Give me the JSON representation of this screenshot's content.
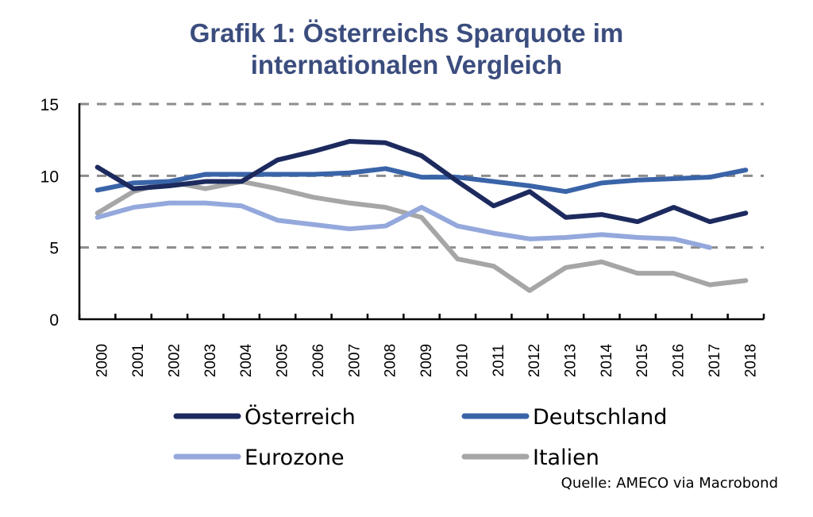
{
  "chart_data": {
    "type": "line",
    "title": "Grafik 1: Österreichs Sparquote im internationalen Vergleich",
    "title_lines": [
      "Grafik 1: Österreichs Sparquote im",
      "internationalen Vergleich"
    ],
    "xlabel": "",
    "ylabel": "",
    "ylim": [
      0,
      15
    ],
    "yticks": [
      "0",
      "5",
      "10",
      "15"
    ],
    "grid": "horizontal dashed at 5, 10, 15",
    "legend_position": "bottom",
    "source": "Quelle: AMECO via Macrobond",
    "categories": [
      "2000",
      "2001",
      "2002",
      "2003",
      "2004",
      "2005",
      "2006",
      "2007",
      "2008",
      "2009",
      "2010",
      "2011",
      "2012",
      "2013",
      "2014",
      "2015",
      "2016",
      "2017",
      "2018"
    ],
    "series": [
      {
        "name": "Österreich",
        "color": "#1c2a5e",
        "values": [
          10.6,
          9.1,
          9.3,
          9.6,
          9.6,
          11.1,
          11.7,
          12.4,
          12.3,
          11.4,
          9.6,
          7.9,
          8.9,
          7.1,
          7.3,
          6.8,
          7.8,
          6.8,
          7.4
        ]
      },
      {
        "name": "Deutschland",
        "color": "#3a64a8",
        "values": [
          9.0,
          9.5,
          9.6,
          10.1,
          10.1,
          10.1,
          10.1,
          10.2,
          10.5,
          9.9,
          9.9,
          9.6,
          9.3,
          8.9,
          9.5,
          9.7,
          9.8,
          9.9,
          10.4
        ]
      },
      {
        "name": "Eurozone",
        "color": "#94a8dc",
        "values": [
          7.1,
          7.8,
          8.1,
          8.1,
          7.9,
          6.9,
          6.6,
          6.3,
          6.5,
          7.8,
          6.5,
          6.0,
          5.6,
          5.7,
          5.9,
          5.7,
          5.6,
          5.0,
          null
        ]
      },
      {
        "name": "Italien",
        "color": "#a6a6a6",
        "values": [
          7.4,
          8.9,
          9.6,
          9.1,
          9.6,
          9.1,
          8.5,
          8.1,
          7.8,
          7.1,
          4.2,
          3.7,
          2.0,
          3.6,
          4.0,
          3.2,
          3.2,
          2.4,
          2.7
        ]
      }
    ]
  }
}
